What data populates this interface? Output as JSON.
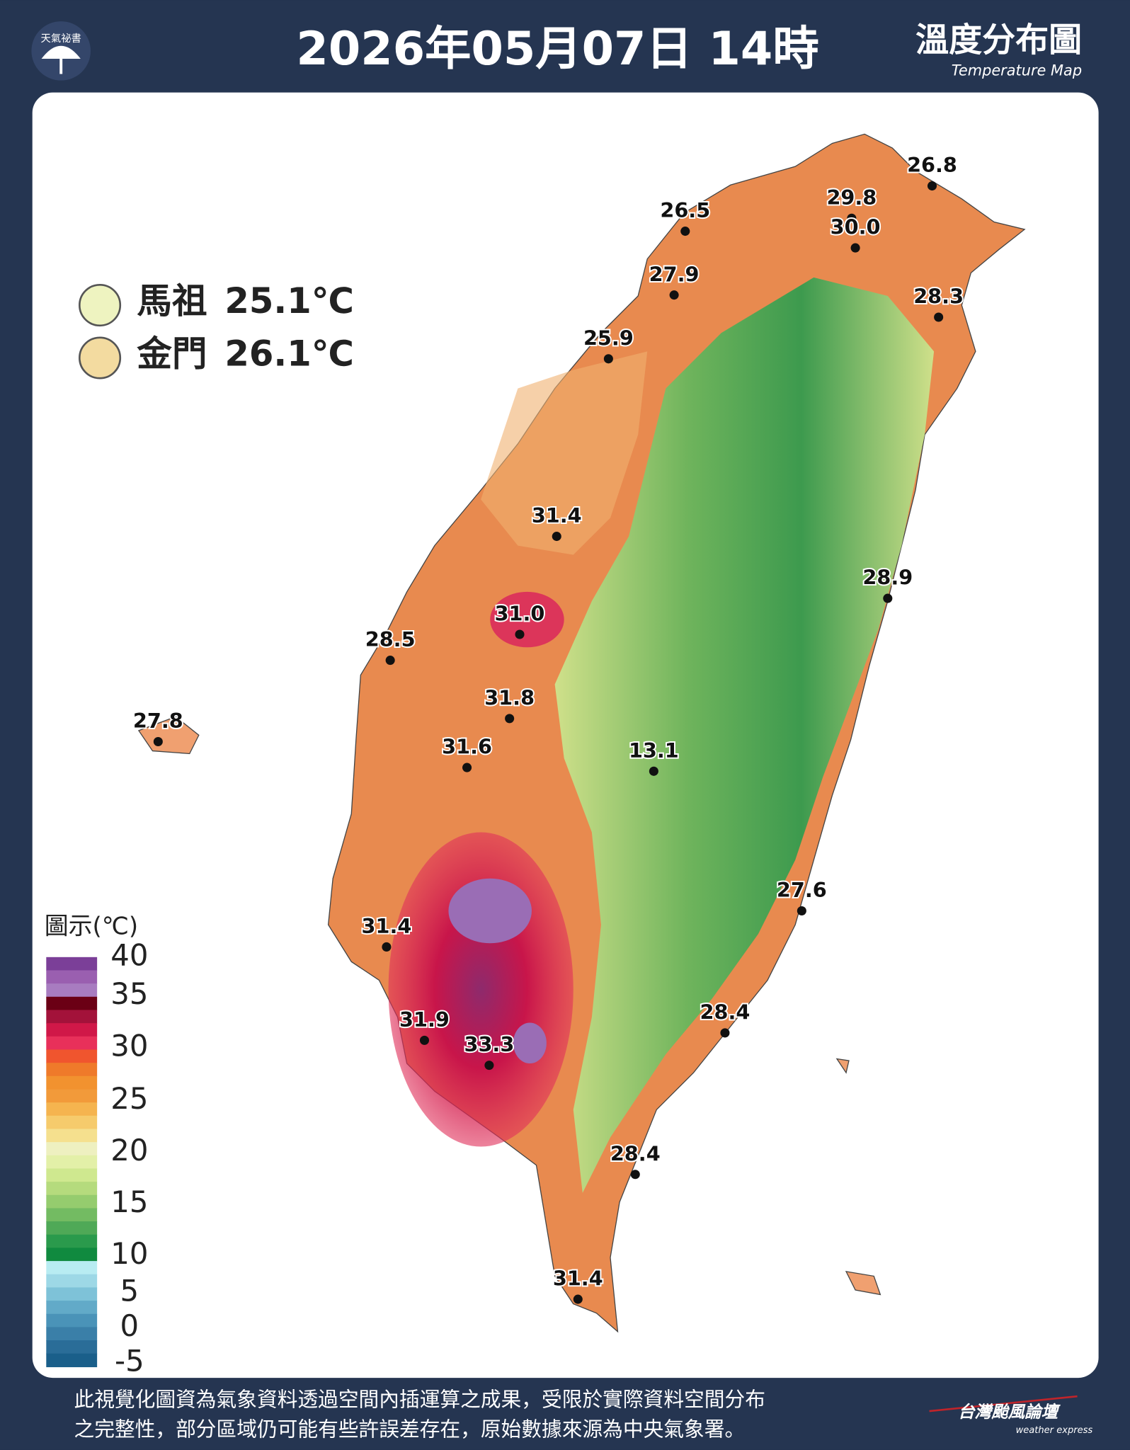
{
  "header": {
    "logo": "天氣祕書",
    "title": "2026年05月07日 14時",
    "map_title": "溫度分布圖",
    "map_subtitle": "Temperature Map"
  },
  "islands": [
    {
      "name": "馬祖",
      "reading": "25.1℃"
    },
    {
      "name": "金門",
      "reading": "26.1℃"
    }
  ],
  "stations": [
    "26.8",
    "29.8",
    "30.0",
    "26.5",
    "27.9",
    "28.3",
    "25.9",
    "31.4",
    "28.9",
    "31.0",
    "28.5",
    "31.8",
    "27.8",
    "31.6",
    "13.1",
    "27.6",
    "31.4",
    "28.4",
    "31.9",
    "33.3",
    "28.4",
    "31.4"
  ],
  "legend": {
    "title": "圖示(℃)",
    "ticks": [
      40,
      35,
      30,
      25,
      20,
      15,
      10,
      5,
      0,
      -5
    ]
  },
  "footer": {
    "lines": [
      "此視覺化圖資為氣象資料透過空間內插運算之成果，受限於實際資料空間分布",
      "之完整性，部分區域仍可能有些許誤差存在，原始數據來源為中央氣象署。"
    ],
    "brand": "台灣颱風論壇",
    "brand_sub": "weather express"
  }
}
